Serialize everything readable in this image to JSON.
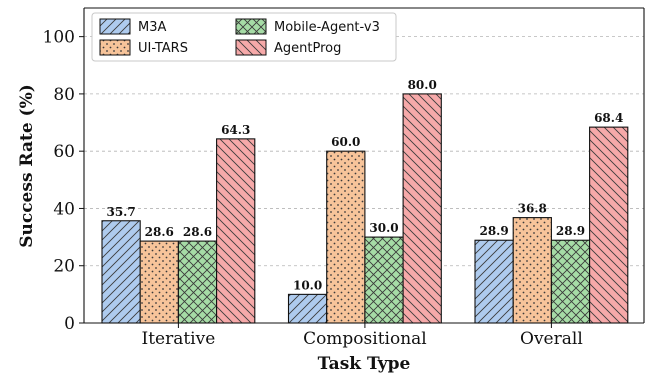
{
  "chart_data": {
    "type": "bar",
    "title": "",
    "xlabel": "Task Type",
    "ylabel": "Success Rate (%)",
    "categories": [
      "Iterative",
      "Compositional",
      "Overall"
    ],
    "ylim": [
      0,
      110
    ],
    "yticks": [
      0,
      20,
      40,
      60,
      80,
      100
    ],
    "grid": "horizontal dashed",
    "legend_position": "top-left",
    "series": [
      {
        "name": "M3A",
        "values": [
          35.7,
          10.0,
          28.9
        ],
        "value_labels": [
          "35.7",
          "10.0",
          "28.9"
        ],
        "color": "#aecbee",
        "hatch": "diagonal-forward"
      },
      {
        "name": "UI-TARS",
        "values": [
          28.6,
          60.0,
          36.8
        ],
        "value_labels": [
          "28.6",
          "60.0",
          "36.8"
        ],
        "color": "#f7c49a",
        "hatch": "dots"
      },
      {
        "name": "Mobile-Agent-v3",
        "values": [
          28.6,
          30.0,
          28.9
        ],
        "value_labels": [
          "28.6",
          "30.0",
          "28.9"
        ],
        "color": "#a6dca6",
        "hatch": "crosshatch"
      },
      {
        "name": "AgentProg",
        "values": [
          64.3,
          80.0,
          68.4
        ],
        "value_labels": [
          "64.3",
          "80.0",
          "68.4"
        ],
        "color": "#f6a9a9",
        "hatch": "diagonal-back"
      }
    ]
  }
}
